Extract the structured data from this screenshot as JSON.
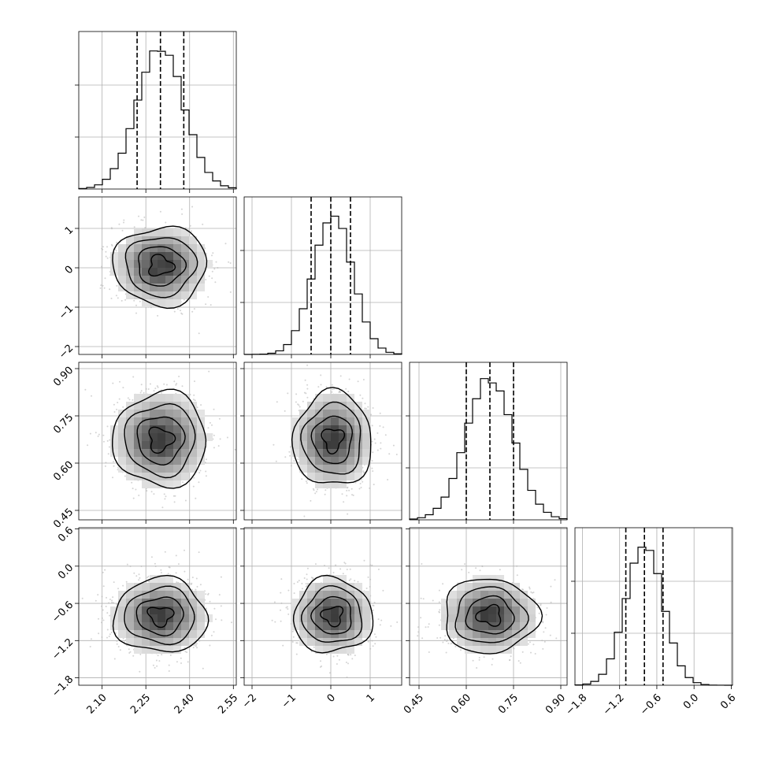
{
  "chart_data": {
    "type": "corner",
    "grid": true,
    "histogram_bins": 20,
    "quantiles": [
      0.16,
      0.5,
      0.84
    ],
    "parameters": [
      {
        "index": 0,
        "range": [
          2.02,
          2.56
        ],
        "mean": 2.3,
        "std": 0.08,
        "quantile_values": [
          2.22,
          2.3,
          2.38
        ],
        "ticks": [
          2.1,
          2.25,
          2.4,
          2.55
        ],
        "tick_labels": [
          "2.10",
          "2.25",
          "2.40",
          "2.55"
        ]
      },
      {
        "index": 1,
        "range": [
          -2.2,
          1.8
        ],
        "mean": 0.05,
        "std": 0.5,
        "quantile_values": [
          -0.5,
          0.0,
          0.5
        ],
        "ticks": [
          -2,
          -1,
          0,
          1
        ],
        "tick_labels": [
          "−2",
          "−1",
          "0",
          "1"
        ]
      },
      {
        "index": 2,
        "range": [
          0.42,
          0.92
        ],
        "mean": 0.675,
        "std": 0.075,
        "quantile_values": [
          0.6,
          0.675,
          0.75
        ],
        "ticks": [
          0.45,
          0.6,
          0.75,
          0.9
        ],
        "tick_labels": [
          "0.45",
          "0.60",
          "0.75",
          "0.90"
        ]
      },
      {
        "index": 3,
        "range": [
          -1.92,
          0.62
        ],
        "mean": -0.8,
        "std": 0.3,
        "quantile_values": [
          -1.1,
          -0.8,
          -0.5
        ],
        "ticks": [
          -1.8,
          -1.2,
          -0.6,
          0.0,
          0.6
        ],
        "tick_labels": [
          "−1.8",
          "−1.2",
          "−0.6",
          "0.0",
          "0.6"
        ]
      }
    ],
    "contour_sigma_levels": [
      0.5,
      1.0,
      1.5,
      2.0
    ]
  }
}
